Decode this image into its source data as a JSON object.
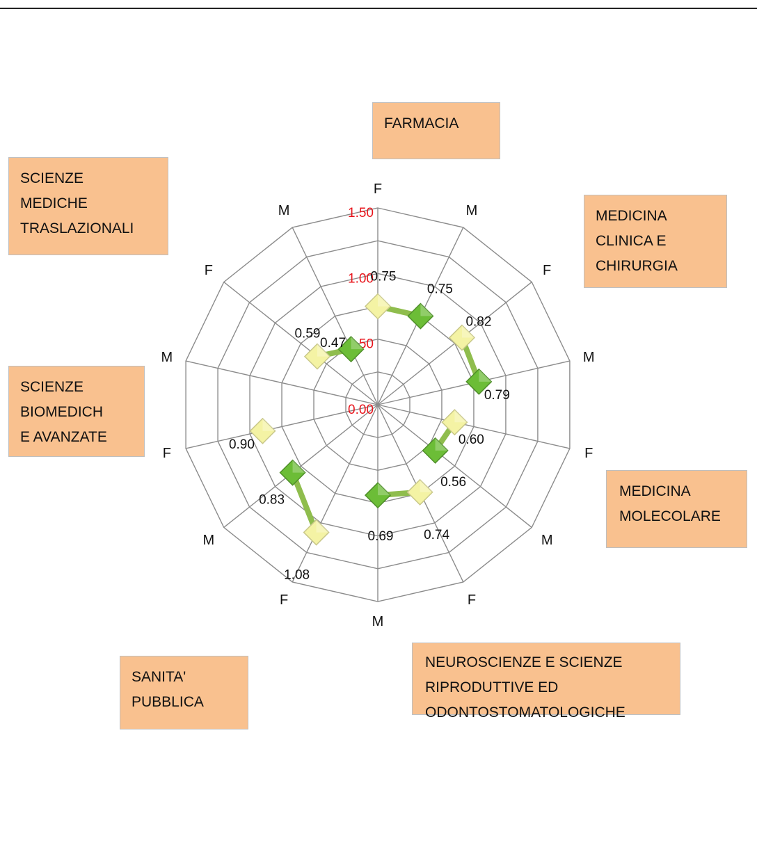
{
  "chart_data": {
    "type": "radar",
    "title": "",
    "categories": [
      "F",
      "M",
      "F",
      "M",
      "F",
      "M",
      "F",
      "M",
      "F",
      "M",
      "F",
      "M",
      "F",
      "M"
    ],
    "groups": [
      {
        "label_lines": [
          "FARMACIA"
        ]
      },
      {
        "label_lines": [
          "MEDICINA",
          "CLINICA E",
          "CHIRURGIA"
        ]
      },
      {
        "label_lines": [
          "MEDICINA",
          "MOLECOLARE"
        ]
      },
      {
        "label_lines": [
          "NEUROSCIENZE E SCIENZE",
          "RIPRODUTTIVE ED",
          "ODONTOSTOMATOLOGICHE"
        ]
      },
      {
        "label_lines": [
          "SANITA'",
          "PUBBLICA"
        ]
      },
      {
        "label_lines": [
          "SCIENZE",
          "BIOMEDICH",
          "E AVANZATE"
        ]
      },
      {
        "label_lines": [
          "SCIENZE",
          "MEDICHE",
          "TRASLAZIONALI"
        ]
      }
    ],
    "values": [
      0.75,
      0.75,
      0.82,
      0.79,
      0.6,
      0.56,
      0.74,
      0.69,
      1.08,
      0.83,
      0.9,
      null,
      0.59,
      0.47
    ],
    "data_labels": [
      "0.75",
      "0.75",
      "0.82",
      "0.79",
      "0.60",
      "0.56",
      "0.74",
      "0.69",
      "1.08",
      "0.83",
      "0.90",
      "",
      "0.59",
      "0.47"
    ],
    "radial_axis": {
      "min": 0,
      "max": 1.5,
      "ticks": [
        0,
        0.5,
        1.0,
        1.5
      ],
      "tick_labels": [
        "0.00",
        "0.50",
        "1.00",
        "1.50"
      ],
      "tick_color": "#e8141b"
    },
    "grid": true,
    "colors": {
      "female_marker": "#f4f3a4",
      "male_marker": "#6cbd37",
      "connector": "#8fbd4d",
      "box_fill": "#f9c18f",
      "grid": "#8c8c8c"
    }
  }
}
